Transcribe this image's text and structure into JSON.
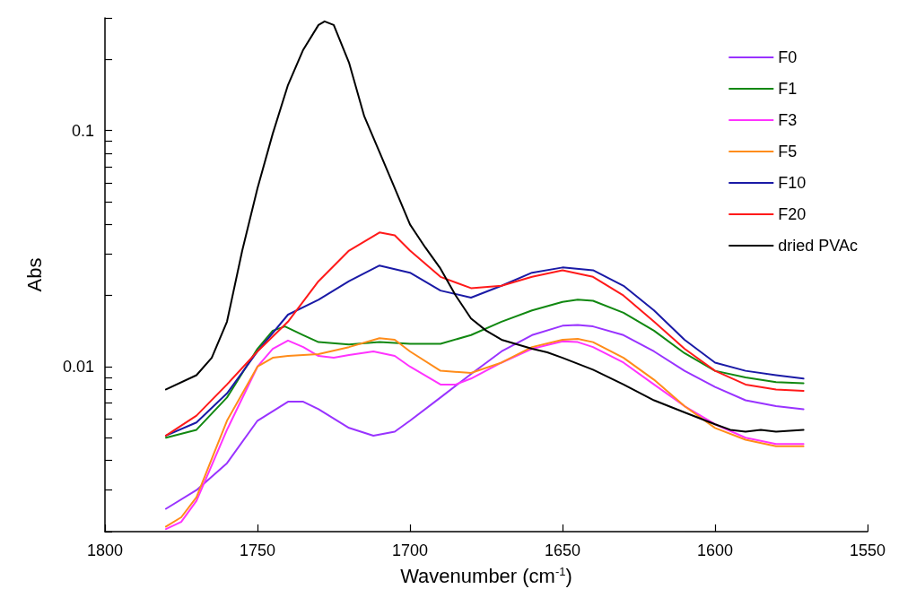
{
  "chart_data": {
    "type": "line",
    "xlabel": "Wavenumber (cm$^{-1}$)",
    "ylabel": "Abs",
    "xlim": [
      1800,
      1550
    ],
    "xticks": [
      1800,
      1750,
      1700,
      1650,
      1600,
      1550
    ],
    "ylim": [
      0.002,
      0.3
    ],
    "log": "y",
    "yticks": [
      {
        "value": 0.002,
        "label": null
      },
      {
        "value": 0.003,
        "label": null
      },
      {
        "value": 0.004,
        "label": null
      },
      {
        "value": 0.005,
        "label": null
      },
      {
        "value": 0.006,
        "label": null
      },
      {
        "value": 0.007,
        "label": null
      },
      {
        "value": 0.008,
        "label": null
      },
      {
        "value": 0.009,
        "label": null
      },
      0.01,
      {
        "value": 0.02,
        "label": null
      },
      {
        "value": 0.03,
        "label": null
      },
      {
        "value": 0.04,
        "label": null
      },
      {
        "value": 0.05,
        "label": null
      },
      {
        "value": 0.06,
        "label": null
      },
      {
        "value": 0.07,
        "label": null
      },
      {
        "value": 0.08,
        "label": null
      },
      {
        "value": 0.09,
        "label": null
      },
      0.1,
      {
        "value": 0.2,
        "label": null
      },
      {
        "value": 0.3,
        "label": null
      }
    ],
    "grid": false,
    "legend": "top right",
    "marker": "none",
    "line_style": "solid",
    "series": [
      {
        "name": "F0",
        "color": "#9933ff",
        "x": [
          1780,
          1770,
          1760,
          1750,
          1740,
          1735,
          1730,
          1720,
          1712,
          1705,
          1700,
          1690,
          1680,
          1670,
          1660,
          1650,
          1645,
          1640,
          1630,
          1620,
          1610,
          1600,
          1590,
          1580,
          1571
        ],
        "values": [
          0.0025,
          0.003,
          0.0039,
          0.0059,
          0.0071,
          0.0071,
          0.0066,
          0.0055,
          0.0051,
          0.0053,
          0.0059,
          0.0074,
          0.0093,
          0.0116,
          0.0136,
          0.0149,
          0.015,
          0.0148,
          0.0136,
          0.0116,
          0.0096,
          0.0082,
          0.0072,
          0.0068,
          0.0066
        ]
      },
      {
        "name": "F1",
        "color": "#118811",
        "x": [
          1780,
          1770,
          1760,
          1750,
          1745,
          1741,
          1735,
          1730,
          1720,
          1710,
          1700,
          1690,
          1680,
          1670,
          1660,
          1650,
          1645,
          1640,
          1630,
          1620,
          1610,
          1600,
          1590,
          1580,
          1571
        ],
        "values": [
          0.005,
          0.0054,
          0.0074,
          0.0119,
          0.0142,
          0.0148,
          0.0136,
          0.0127,
          0.0124,
          0.0127,
          0.0125,
          0.0125,
          0.0136,
          0.0155,
          0.0173,
          0.0188,
          0.0192,
          0.019,
          0.0169,
          0.0142,
          0.0114,
          0.0096,
          0.009,
          0.0086,
          0.0085
        ]
      },
      {
        "name": "F3",
        "color": "#ff33ff",
        "x": [
          1780,
          1775,
          1770,
          1760,
          1750,
          1745,
          1740,
          1735,
          1730,
          1725,
          1720,
          1712,
          1705,
          1700,
          1690,
          1685,
          1680,
          1670,
          1660,
          1650,
          1645,
          1640,
          1630,
          1620,
          1610,
          1600,
          1590,
          1580,
          1571
        ],
        "values": [
          0.00205,
          0.0022,
          0.0027,
          0.0054,
          0.01,
          0.0119,
          0.0129,
          0.0121,
          0.0111,
          0.0109,
          0.0112,
          0.0116,
          0.0111,
          0.01,
          0.0084,
          0.0084,
          0.0089,
          0.0104,
          0.0119,
          0.0128,
          0.0127,
          0.0121,
          0.0104,
          0.0084,
          0.0068,
          0.0057,
          0.005,
          0.0047,
          0.0047
        ]
      },
      {
        "name": "F5",
        "color": "#ff8c1a",
        "x": [
          1780,
          1775,
          1770,
          1760,
          1750,
          1745,
          1740,
          1730,
          1720,
          1710,
          1705,
          1700,
          1690,
          1680,
          1670,
          1660,
          1650,
          1645,
          1640,
          1630,
          1620,
          1610,
          1600,
          1590,
          1580,
          1571
        ],
        "values": [
          0.0021,
          0.0023,
          0.0028,
          0.0059,
          0.01,
          0.0109,
          0.0111,
          0.0113,
          0.0121,
          0.0132,
          0.013,
          0.0116,
          0.0096,
          0.0094,
          0.0104,
          0.0121,
          0.013,
          0.0131,
          0.0127,
          0.0109,
          0.0088,
          0.0068,
          0.0055,
          0.0049,
          0.0046,
          0.0046
        ]
      },
      {
        "name": "F10",
        "color": "#1a1aa6",
        "x": [
          1780,
          1770,
          1760,
          1750,
          1740,
          1730,
          1720,
          1710,
          1700,
          1690,
          1680,
          1670,
          1660,
          1650,
          1640,
          1630,
          1620,
          1610,
          1600,
          1590,
          1580,
          1571
        ],
        "values": [
          0.0051,
          0.0058,
          0.0077,
          0.0116,
          0.0166,
          0.0192,
          0.023,
          0.0268,
          0.025,
          0.021,
          0.0196,
          0.022,
          0.025,
          0.0263,
          0.0256,
          0.022,
          0.0173,
          0.013,
          0.0104,
          0.0096,
          0.0092,
          0.0089
        ]
      },
      {
        "name": "F20",
        "color": "#ff1a1a",
        "x": [
          1780,
          1770,
          1760,
          1750,
          1740,
          1730,
          1720,
          1710,
          1705,
          1700,
          1690,
          1680,
          1670,
          1660,
          1650,
          1640,
          1630,
          1620,
          1610,
          1600,
          1590,
          1580,
          1571
        ],
        "values": [
          0.0051,
          0.0062,
          0.0084,
          0.0116,
          0.0155,
          0.023,
          0.031,
          0.037,
          0.036,
          0.031,
          0.024,
          0.0215,
          0.022,
          0.024,
          0.0256,
          0.024,
          0.02,
          0.0155,
          0.0119,
          0.0096,
          0.0084,
          0.008,
          0.0079
        ]
      },
      {
        "name": "dried PVAc",
        "color": "#000000",
        "x": [
          1780,
          1770,
          1765,
          1760,
          1755,
          1750,
          1745,
          1740,
          1735,
          1730,
          1728,
          1725,
          1720,
          1715,
          1710,
          1705,
          1700,
          1695,
          1690,
          1685,
          1680,
          1675,
          1670,
          1660,
          1655,
          1650,
          1640,
          1630,
          1620,
          1610,
          1600,
          1595,
          1590,
          1585,
          1580,
          1571
        ],
        "values": [
          0.008,
          0.0092,
          0.0109,
          0.0155,
          0.031,
          0.057,
          0.097,
          0.156,
          0.22,
          0.28,
          0.29,
          0.28,
          0.194,
          0.115,
          0.081,
          0.057,
          0.04,
          0.032,
          0.026,
          0.02,
          0.016,
          0.0142,
          0.013,
          0.0119,
          0.0115,
          0.0109,
          0.0097,
          0.0084,
          0.0072,
          0.0064,
          0.0057,
          0.0054,
          0.0053,
          0.0054,
          0.0053,
          0.0054
        ]
      }
    ]
  }
}
